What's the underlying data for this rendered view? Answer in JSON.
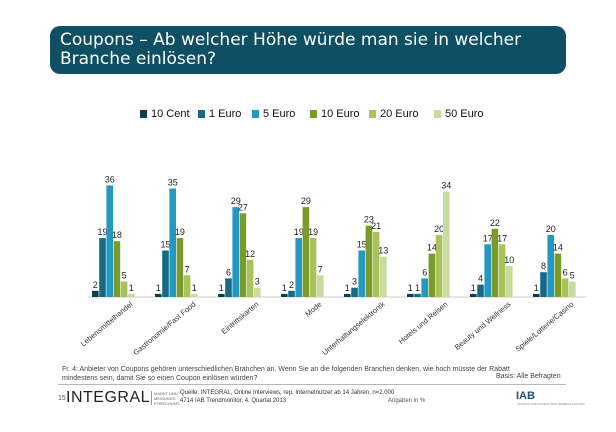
{
  "title": "Coupons – Ab welcher Höhe würde man sie in welcher Branche einlösen?",
  "chart_data": {
    "type": "bar",
    "title": "Coupons – Ab welcher Höhe würde man sie in welcher Branche einlösen?",
    "categories": [
      "Lebensmittelhandel",
      "Gastronomie/Fast Food",
      "Eintrittskarten",
      "Mode",
      "Unterhaltungselektronik",
      "Hotels und Reisen",
      "Beauty und Wellness",
      "Spiele/Lotterie/Casino"
    ],
    "series": [
      {
        "name": "10 Cent",
        "color": "#0e3d4d",
        "values": [
          2,
          1,
          1,
          1,
          1,
          1,
          1,
          1
        ]
      },
      {
        "name": "1 Euro",
        "color": "#176a86",
        "values": [
          19,
          15,
          6,
          2,
          3,
          1,
          4,
          8
        ]
      },
      {
        "name": "5 Euro",
        "color": "#2399c2",
        "values": [
          36,
          35,
          29,
          19,
          15,
          6,
          17,
          20
        ]
      },
      {
        "name": "10 Euro",
        "color": "#7a9a2a",
        "values": [
          18,
          19,
          27,
          29,
          23,
          14,
          22,
          14
        ]
      },
      {
        "name": "20 Euro",
        "color": "#a8c35a",
        "values": [
          5,
          7,
          12,
          19,
          21,
          20,
          17,
          6
        ]
      },
      {
        "name": "50 Euro",
        "color": "#c9dca0",
        "values": [
          1,
          1,
          3,
          7,
          13,
          34,
          10,
          5
        ]
      }
    ],
    "ylim": [
      0,
      40
    ],
    "legend_position": "top",
    "grid": false
  },
  "footnote": "Fr. 4: Anbieter von Coupons gehören unterschiedlichen Branchen an. Wenn Sie an die folgenden Branchen denken, wie hoch müsste der Rabatt mindestens sein, damit Sie so einen Coupon einlösen würden?",
  "basis": "Basis: Alle Befragten",
  "page_number": "15",
  "logo_text": "INTEGRAL",
  "logo_sub": "MARKT UND MEINUNGS FORSCHUNG",
  "source_line1": "Quelle: INTEGRAL, Online Interviews, rep. Internetnutzer ab 14 Jahren, n=2.000",
  "source_line2": "4714 IAB Trendmonitor, 4. Quartal 2013",
  "source_unit": "Angaben in %",
  "iab_logo": "IAB",
  "iab_sub": "INTERACTIVE ADVERTISING BUREAU AUSTRIA"
}
